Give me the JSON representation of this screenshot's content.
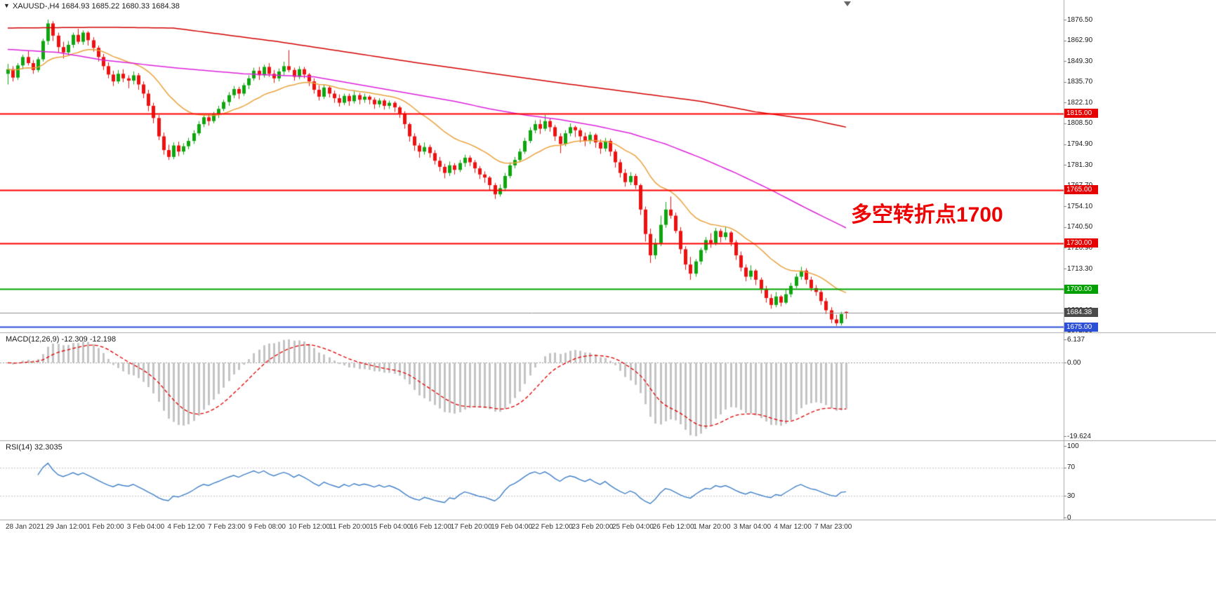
{
  "window": {
    "title": "XAUUSD-,H4 1684.93 1685.22 1680.33 1684.38",
    "symbol_menu_icon": "▼"
  },
  "annotation": {
    "text": "多空转折点1700",
    "color": "#EE0000"
  },
  "indicators": {
    "macd": {
      "label": "MACD(12,26,9) -12.309 -12.198",
      "params": {
        "fast": 12,
        "slow": 26,
        "signal": 9
      },
      "current_macd": "-12.309",
      "current_signal": "-12.198",
      "axis_max_label": "6.137",
      "axis_zero_label": "0.00",
      "axis_min_label": "-19.624",
      "histogram_color": "#C4C4C4",
      "signal_color": "#E00000"
    },
    "rsi": {
      "label": "RSI(14) 32.3035",
      "period": 14,
      "current_value": "32.3035",
      "axis_labels": [
        "100",
        "70",
        "30",
        "0"
      ],
      "axis_values": [
        100,
        70,
        30,
        0
      ],
      "levels": [
        70,
        30
      ],
      "line_color": "#4080C8",
      "level_color": "#C8C8C8"
    }
  },
  "chart_data": {
    "type": "candlestick",
    "symbol": "XAUUSD-",
    "timeframe": "H4",
    "ohlc_display": {
      "open": "1684.93",
      "high": "1685.22",
      "low": "1680.33",
      "close": "1684.38"
    },
    "ylim": [
      1671.5,
      1881.0
    ],
    "colors": {
      "bull": "#0FA50F",
      "bear": "#EE1111"
    },
    "price_axis_ticks": {
      "labels": [
        "1876.50",
        "1862.90",
        "1849.30",
        "1835.70",
        "1822.10",
        "1808.50",
        "1794.90",
        "1781.30",
        "1767.70",
        "1754.10",
        "1740.50",
        "1726.90",
        "1713.30",
        "1699.70",
        "1686.10",
        "1672.50"
      ],
      "values": [
        1876.5,
        1862.9,
        1849.3,
        1835.7,
        1822.1,
        1808.5,
        1794.9,
        1781.3,
        1767.7,
        1754.1,
        1740.5,
        1726.9,
        1713.3,
        1699.7,
        1686.1,
        1672.5
      ]
    },
    "time_axis_ticks": [
      "28 Jan 2021",
      "29 Jan 12:00",
      "1 Feb 20:00",
      "3 Feb 04:00",
      "4 Feb 12:00",
      "7 Feb 23:00",
      "9 Feb 08:00",
      "10 Feb 12:00",
      "11 Feb 20:00",
      "15 Feb 04:00",
      "16 Feb 12:00",
      "17 Feb 20:00",
      "19 Feb 04:00",
      "22 Feb 12:00",
      "23 Feb 20:00",
      "25 Feb 04:00",
      "26 Feb 12:00",
      "1 Mar 20:00",
      "3 Mar 04:00",
      "4 Mar 12:00",
      "7 Mar 23:00"
    ],
    "hlines": [
      {
        "label": "1815.00",
        "value": 1815.0,
        "color": "#FF0000",
        "tag_color": "#E60000"
      },
      {
        "label": "1765.00",
        "value": 1765.0,
        "color": "#FF0000",
        "tag_color": "#E60000"
      },
      {
        "label": "1730.00",
        "value": 1730.0,
        "color": "#FF0000",
        "tag_color": "#E60000"
      },
      {
        "label": "1700.00",
        "value": 1700.0,
        "color": "#00A400",
        "tag_color": "#00A000"
      },
      {
        "label": "1675.00",
        "value": 1675.0,
        "color": "#2B4FD7",
        "tag_color": "#2B4FD7"
      }
    ],
    "current_price": {
      "label": "1684.38",
      "value": 1684.38,
      "tag_color": "#4A4A4A",
      "line_color": "#909090"
    },
    "moving_averages": [
      {
        "name": "ma-fast-orange",
        "type": "ema",
        "period": 20,
        "color": "#EAA23C",
        "source": "close"
      },
      {
        "name": "ma-mid-magenta",
        "color": "#DD22DD",
        "anchors": [
          [
            0,
            1857
          ],
          [
            10,
            1855
          ],
          [
            19,
            1850
          ],
          [
            33,
            1845
          ],
          [
            47,
            1841
          ],
          [
            61,
            1839
          ],
          [
            75,
            1831
          ],
          [
            89,
            1823
          ],
          [
            96,
            1818
          ],
          [
            103,
            1814
          ],
          [
            110,
            1811
          ],
          [
            117,
            1807
          ],
          [
            124,
            1802
          ],
          [
            131,
            1795
          ],
          [
            138,
            1786
          ],
          [
            145,
            1776
          ],
          [
            152,
            1765
          ],
          [
            159,
            1753
          ],
          [
            167,
            1740
          ]
        ]
      },
      {
        "name": "ma-slow-red",
        "color": "#D40000",
        "anchors": [
          [
            0,
            1871
          ],
          [
            20,
            1871.5
          ],
          [
            33,
            1871
          ],
          [
            54,
            1862
          ],
          [
            82,
            1848
          ],
          [
            110,
            1835
          ],
          [
            138,
            1823
          ],
          [
            149,
            1816
          ],
          [
            160,
            1811
          ],
          [
            167,
            1806
          ]
        ]
      }
    ],
    "candles_ohlc": [
      [
        1841.0,
        1847.5,
        1834.0,
        1844.0
      ],
      [
        1844.0,
        1846.0,
        1836.0,
        1838.5
      ],
      [
        1838.5,
        1848.0,
        1837.0,
        1846.5
      ],
      [
        1846.5,
        1853.5,
        1844.0,
        1852.0
      ],
      [
        1852.0,
        1856.0,
        1846.5,
        1848.0
      ],
      [
        1848.0,
        1850.0,
        1841.0,
        1843.5
      ],
      [
        1843.5,
        1852.0,
        1842.0,
        1850.5
      ],
      [
        1850.5,
        1864.0,
        1849.0,
        1862.5
      ],
      [
        1862.5,
        1876.5,
        1860.0,
        1874.0
      ],
      [
        1874.0,
        1875.5,
        1862.5,
        1866.0
      ],
      [
        1866.0,
        1868.0,
        1855.0,
        1858.5
      ],
      [
        1858.5,
        1862.0,
        1851.0,
        1855.0
      ],
      [
        1855.0,
        1862.5,
        1853.0,
        1860.0
      ],
      [
        1860.0,
        1868.0,
        1858.0,
        1866.5
      ],
      [
        1866.5,
        1870.5,
        1860.5,
        1862.0
      ],
      [
        1862.0,
        1869.5,
        1860.0,
        1868.0
      ],
      [
        1868.0,
        1869.0,
        1859.5,
        1863.0
      ],
      [
        1863.0,
        1865.0,
        1855.5,
        1858.0
      ],
      [
        1858.0,
        1859.5,
        1849.0,
        1852.0
      ],
      [
        1852.0,
        1854.0,
        1843.5,
        1846.0
      ],
      [
        1846.0,
        1848.5,
        1838.0,
        1840.5
      ],
      [
        1840.5,
        1843.0,
        1833.0,
        1836.0
      ],
      [
        1836.0,
        1843.5,
        1834.5,
        1841.0
      ],
      [
        1841.0,
        1844.0,
        1835.5,
        1838.0
      ],
      [
        1838.0,
        1840.0,
        1831.5,
        1836.5
      ],
      [
        1836.5,
        1842.5,
        1834.0,
        1840.0
      ],
      [
        1840.0,
        1841.5,
        1830.5,
        1834.0
      ],
      [
        1834.0,
        1836.0,
        1825.0,
        1828.0
      ],
      [
        1828.0,
        1830.5,
        1816.5,
        1820.0
      ],
      [
        1820.0,
        1822.0,
        1808.5,
        1812.0
      ],
      [
        1812.0,
        1814.0,
        1797.5,
        1800.0
      ],
      [
        1800.0,
        1802.5,
        1788.0,
        1791.0
      ],
      [
        1791.0,
        1794.5,
        1784.5,
        1786.5
      ],
      [
        1786.5,
        1796.0,
        1785.0,
        1794.0
      ],
      [
        1794.0,
        1796.5,
        1787.0,
        1790.0
      ],
      [
        1790.0,
        1795.5,
        1788.0,
        1793.5
      ],
      [
        1793.5,
        1799.0,
        1791.5,
        1797.0
      ],
      [
        1797.0,
        1804.0,
        1795.0,
        1802.0
      ],
      [
        1802.0,
        1810.0,
        1800.5,
        1808.0
      ],
      [
        1808.0,
        1814.0,
        1806.0,
        1812.5
      ],
      [
        1812.5,
        1814.5,
        1807.0,
        1810.0
      ],
      [
        1810.0,
        1816.0,
        1808.5,
        1814.5
      ],
      [
        1814.5,
        1820.0,
        1812.0,
        1818.0
      ],
      [
        1818.0,
        1824.0,
        1816.5,
        1822.5
      ],
      [
        1822.5,
        1829.0,
        1820.0,
        1827.0
      ],
      [
        1827.0,
        1833.0,
        1825.0,
        1831.0
      ],
      [
        1831.0,
        1832.5,
        1824.5,
        1828.0
      ],
      [
        1828.0,
        1835.0,
        1826.5,
        1833.5
      ],
      [
        1833.5,
        1840.0,
        1831.0,
        1838.0
      ],
      [
        1838.0,
        1845.0,
        1836.5,
        1843.0
      ],
      [
        1843.0,
        1845.5,
        1837.0,
        1840.0
      ],
      [
        1840.0,
        1847.0,
        1838.5,
        1845.5
      ],
      [
        1845.5,
        1848.0,
        1839.0,
        1841.0
      ],
      [
        1841.0,
        1843.5,
        1835.0,
        1838.0
      ],
      [
        1838.0,
        1844.5,
        1836.0,
        1842.5
      ],
      [
        1842.5,
        1849.0,
        1840.0,
        1846.0
      ],
      [
        1846.0,
        1856.5,
        1842.0,
        1843.5
      ],
      [
        1843.5,
        1845.0,
        1836.5,
        1839.0
      ],
      [
        1839.0,
        1846.0,
        1837.5,
        1844.0
      ],
      [
        1844.0,
        1845.5,
        1838.0,
        1840.5
      ],
      [
        1840.5,
        1841.5,
        1833.0,
        1836.0
      ],
      [
        1836.0,
        1838.0,
        1828.0,
        1830.5
      ],
      [
        1830.5,
        1833.5,
        1823.5,
        1826.0
      ],
      [
        1826.0,
        1834.0,
        1824.5,
        1832.0
      ],
      [
        1832.0,
        1833.0,
        1825.5,
        1828.0
      ],
      [
        1828.0,
        1830.0,
        1822.0,
        1825.0
      ],
      [
        1825.0,
        1827.5,
        1819.5,
        1822.0
      ],
      [
        1822.0,
        1828.0,
        1820.5,
        1826.5
      ],
      [
        1826.5,
        1828.0,
        1820.0,
        1823.0
      ],
      [
        1823.0,
        1829.5,
        1821.5,
        1827.0
      ],
      [
        1827.0,
        1828.5,
        1821.0,
        1824.0
      ],
      [
        1824.0,
        1828.0,
        1822.0,
        1826.0
      ],
      [
        1826.0,
        1827.0,
        1821.0,
        1824.0
      ],
      [
        1824.0,
        1825.5,
        1818.0,
        1821.0
      ],
      [
        1821.0,
        1825.0,
        1819.0,
        1823.5
      ],
      [
        1823.5,
        1824.5,
        1817.5,
        1820.0
      ],
      [
        1820.0,
        1823.5,
        1818.0,
        1822.0
      ],
      [
        1822.0,
        1823.0,
        1816.0,
        1819.0
      ],
      [
        1819.0,
        1820.0,
        1812.0,
        1815.0
      ],
      [
        1815.0,
        1816.5,
        1805.0,
        1808.0
      ],
      [
        1808.0,
        1809.0,
        1796.5,
        1800.0
      ],
      [
        1800.0,
        1802.0,
        1790.5,
        1794.0
      ],
      [
        1794.0,
        1795.5,
        1786.0,
        1790.0
      ],
      [
        1790.0,
        1796.0,
        1788.0,
        1793.0
      ],
      [
        1793.0,
        1794.5,
        1786.0,
        1789.0
      ],
      [
        1789.0,
        1791.0,
        1781.5,
        1784.0
      ],
      [
        1784.0,
        1786.5,
        1777.0,
        1780.0
      ],
      [
        1780.0,
        1782.0,
        1772.5,
        1776.0
      ],
      [
        1776.0,
        1783.5,
        1774.0,
        1781.0
      ],
      [
        1781.0,
        1782.5,
        1775.0,
        1778.0
      ],
      [
        1778.0,
        1784.5,
        1776.5,
        1782.5
      ],
      [
        1782.5,
        1788.0,
        1780.0,
        1786.0
      ],
      [
        1786.0,
        1787.5,
        1780.5,
        1783.0
      ],
      [
        1783.0,
        1784.5,
        1776.0,
        1779.0
      ],
      [
        1779.0,
        1780.5,
        1772.0,
        1775.0
      ],
      [
        1775.0,
        1777.0,
        1769.5,
        1773.0
      ],
      [
        1773.0,
        1774.0,
        1764.5,
        1768.0
      ],
      [
        1768.0,
        1769.5,
        1759.0,
        1762.0
      ],
      [
        1762.0,
        1768.5,
        1760.5,
        1766.0
      ],
      [
        1766.0,
        1776.0,
        1764.0,
        1774.0
      ],
      [
        1774.0,
        1783.0,
        1772.5,
        1781.0
      ],
      [
        1781.0,
        1786.5,
        1779.0,
        1784.5
      ],
      [
        1784.5,
        1792.0,
        1783.0,
        1790.0
      ],
      [
        1790.0,
        1799.0,
        1788.5,
        1797.0
      ],
      [
        1797.0,
        1806.0,
        1795.5,
        1804.0
      ],
      [
        1804.0,
        1810.5,
        1802.0,
        1808.0
      ],
      [
        1808.0,
        1811.0,
        1801.5,
        1805.0
      ],
      [
        1805.0,
        1814.0,
        1803.5,
        1810.0
      ],
      [
        1810.0,
        1812.0,
        1803.0,
        1806.0
      ],
      [
        1806.0,
        1807.5,
        1797.0,
        1800.0
      ],
      [
        1800.0,
        1802.0,
        1789.0,
        1795.0
      ],
      [
        1795.0,
        1804.0,
        1793.5,
        1802.0
      ],
      [
        1802.0,
        1808.5,
        1800.0,
        1806.0
      ],
      [
        1806.0,
        1807.0,
        1799.5,
        1804.0
      ],
      [
        1804.0,
        1805.5,
        1796.0,
        1800.0
      ],
      [
        1800.0,
        1802.5,
        1793.5,
        1797.0
      ],
      [
        1797.0,
        1803.0,
        1795.0,
        1801.0
      ],
      [
        1801.0,
        1802.0,
        1792.5,
        1796.0
      ],
      [
        1796.0,
        1798.0,
        1788.5,
        1792.0
      ],
      [
        1792.0,
        1799.0,
        1790.0,
        1797.0
      ],
      [
        1797.0,
        1798.5,
        1787.0,
        1790.0
      ],
      [
        1790.0,
        1791.5,
        1779.5,
        1783.0
      ],
      [
        1783.0,
        1785.0,
        1773.0,
        1776.0
      ],
      [
        1776.0,
        1778.5,
        1767.0,
        1770.0
      ],
      [
        1770.0,
        1776.5,
        1768.0,
        1774.0
      ],
      [
        1774.0,
        1775.5,
        1765.5,
        1768.0
      ],
      [
        1768.0,
        1769.0,
        1748.5,
        1752.0
      ],
      [
        1752.0,
        1754.0,
        1731.0,
        1736.0
      ],
      [
        1736.0,
        1739.5,
        1717.0,
        1722.0
      ],
      [
        1722.0,
        1733.0,
        1719.5,
        1730.0
      ],
      [
        1730.0,
        1748.0,
        1728.0,
        1742.0
      ],
      [
        1742.0,
        1757.0,
        1740.0,
        1752.0
      ],
      [
        1752.0,
        1760.5,
        1746.0,
        1748.0
      ],
      [
        1748.0,
        1750.0,
        1736.5,
        1738.0
      ],
      [
        1738.0,
        1740.5,
        1723.0,
        1726.0
      ],
      [
        1726.0,
        1728.0,
        1712.5,
        1716.0
      ],
      [
        1716.0,
        1721.0,
        1706.0,
        1710.0
      ],
      [
        1710.0,
        1719.5,
        1708.0,
        1718.0
      ],
      [
        1718.0,
        1727.0,
        1716.0,
        1725.5
      ],
      [
        1725.5,
        1734.0,
        1723.5,
        1732.0
      ],
      [
        1732.0,
        1736.5,
        1727.0,
        1730.0
      ],
      [
        1730.0,
        1740.0,
        1728.5,
        1738.0
      ],
      [
        1738.0,
        1739.5,
        1730.5,
        1734.0
      ],
      [
        1734.0,
        1740.5,
        1732.0,
        1737.0
      ],
      [
        1737.0,
        1738.0,
        1728.0,
        1730.5
      ],
      [
        1730.5,
        1732.0,
        1719.0,
        1722.0
      ],
      [
        1722.0,
        1724.5,
        1711.5,
        1714.0
      ],
      [
        1714.0,
        1716.0,
        1705.0,
        1708.0
      ],
      [
        1708.0,
        1715.5,
        1706.0,
        1712.0
      ],
      [
        1712.0,
        1713.0,
        1702.5,
        1706.0
      ],
      [
        1706.0,
        1707.5,
        1697.0,
        1700.0
      ],
      [
        1700.0,
        1702.0,
        1691.0,
        1694.0
      ],
      [
        1694.0,
        1696.5,
        1687.0,
        1689.5
      ],
      [
        1689.5,
        1698.0,
        1688.0,
        1695.0
      ],
      [
        1695.0,
        1696.0,
        1688.5,
        1691.0
      ],
      [
        1691.0,
        1699.5,
        1690.0,
        1696.5
      ],
      [
        1696.5,
        1704.0,
        1694.5,
        1702.0
      ],
      [
        1702.0,
        1710.0,
        1700.5,
        1708.0
      ],
      [
        1708.0,
        1714.5,
        1706.0,
        1712.0
      ],
      [
        1712.0,
        1713.5,
        1703.0,
        1706.0
      ],
      [
        1706.0,
        1708.0,
        1698.5,
        1700.5
      ],
      [
        1700.5,
        1702.5,
        1695.5,
        1698.0
      ],
      [
        1698.0,
        1699.5,
        1689.5,
        1692.0
      ],
      [
        1692.0,
        1694.0,
        1683.5,
        1686.0
      ],
      [
        1686.0,
        1688.0,
        1677.5,
        1680.0
      ],
      [
        1680.0,
        1683.0,
        1675.8,
        1677.5
      ],
      [
        1677.5,
        1685.0,
        1676.0,
        1683.5
      ],
      [
        1684.93,
        1685.22,
        1680.33,
        1684.38
      ]
    ]
  }
}
